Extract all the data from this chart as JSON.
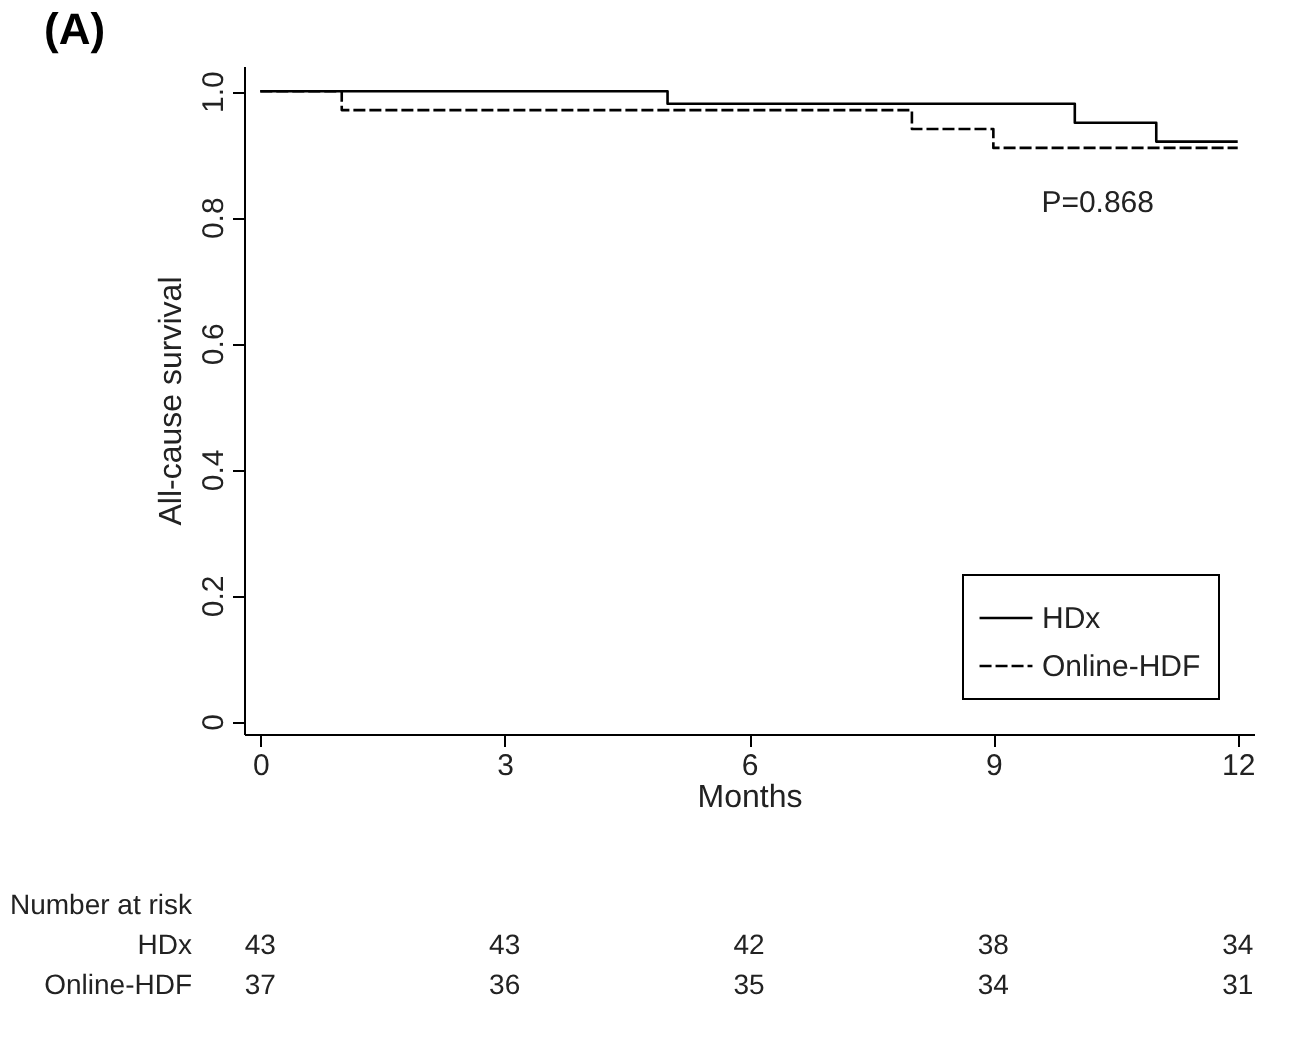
{
  "chart_data": {
    "type": "step",
    "title": "(A)",
    "xlabel": "Months",
    "ylabel": "All-cause survival",
    "series": [
      {
        "name": "HDx",
        "color": "#000000",
        "line_style": "solid",
        "x": [
          0,
          5,
          10,
          11,
          12
        ],
        "values": [
          1,
          0.98,
          0.95,
          0.92,
          0.92
        ]
      },
      {
        "name": "Online-HDF",
        "color": "#000000",
        "line_style": "dashed",
        "x": [
          0,
          1,
          8,
          9,
          12
        ],
        "values": [
          1,
          0.97,
          0.94,
          0.91,
          0.91
        ]
      }
    ],
    "xlim": [
      -0.2,
      12.2
    ],
    "xticks": [
      0,
      3,
      6,
      9,
      12
    ],
    "ylim": [
      -0.02,
      1.04
    ],
    "yticks": [
      0,
      {
        "value": 0.2,
        "label": "0.2"
      },
      {
        "value": 0.4,
        "label": "0.4"
      },
      {
        "value": 0.6,
        "label": "0.6"
      },
      {
        "value": 0.8,
        "label": "0.8"
      },
      {
        "value": 1,
        "label": "1.0"
      }
    ],
    "grid": false,
    "legend": "bottom right",
    "annotations": [
      "P=0.868",
      "Number at risk",
      "HDx",
      "43",
      "43",
      "42",
      "38",
      "34",
      "Online-HDF",
      "37",
      "36",
      "35",
      "34",
      "31"
    ]
  }
}
